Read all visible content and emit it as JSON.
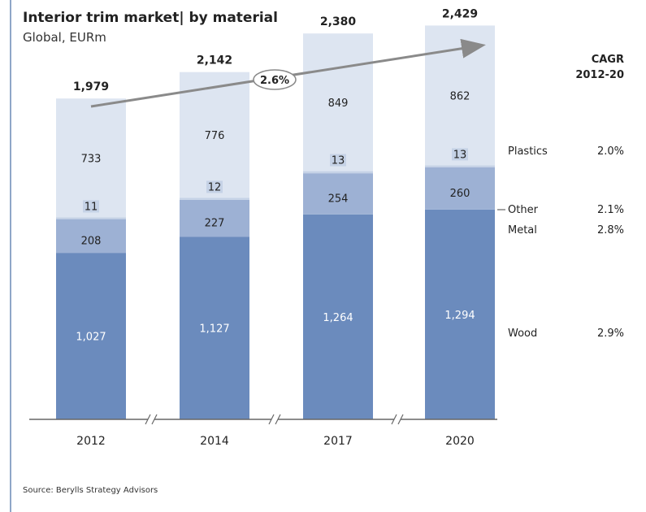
{
  "header": {
    "title": "Interior trim market| by material",
    "subtitle": "Global, EURm"
  },
  "cagr_header": {
    "line1": "CAGR",
    "line2": "2012-20"
  },
  "growth_label": "2.6%",
  "source": "Source: Berylls Strategy Advisors",
  "colors": {
    "wood": "#6b8bbd",
    "metal": "#9db1d4",
    "other": "#c5d2e6",
    "plastics": "#dde5f1",
    "arrow": "#8a8a8a",
    "axis": "#666666"
  },
  "chart_data": {
    "type": "bar",
    "stacked": true,
    "title": "Interior trim market| by material",
    "subtitle": "Global, EURm",
    "categories": [
      "2012",
      "2014",
      "2017",
      "2020"
    ],
    "series": [
      {
        "name": "Wood",
        "values": [
          1027,
          1127,
          1264,
          1294
        ],
        "labels": [
          "1,027",
          "1,127",
          "1,264",
          "1,294"
        ],
        "cagr": "2.9%"
      },
      {
        "name": "Metal",
        "values": [
          208,
          227,
          254,
          260
        ],
        "labels": [
          "208",
          "227",
          "254",
          "260"
        ],
        "cagr": "2.8%"
      },
      {
        "name": "Other",
        "values": [
          11,
          12,
          13,
          13
        ],
        "labels": [
          "11",
          "12",
          "13",
          "13"
        ],
        "cagr": "2.1%"
      },
      {
        "name": "Plastics",
        "values": [
          733,
          776,
          849,
          862
        ],
        "labels": [
          "733",
          "776",
          "849",
          "862"
        ],
        "cagr": "2.0%"
      }
    ],
    "totals": [
      "1,979",
      "2,142",
      "2,380",
      "2,429"
    ],
    "axis_breaks": true,
    "legend_placement": "right",
    "grid": false
  }
}
